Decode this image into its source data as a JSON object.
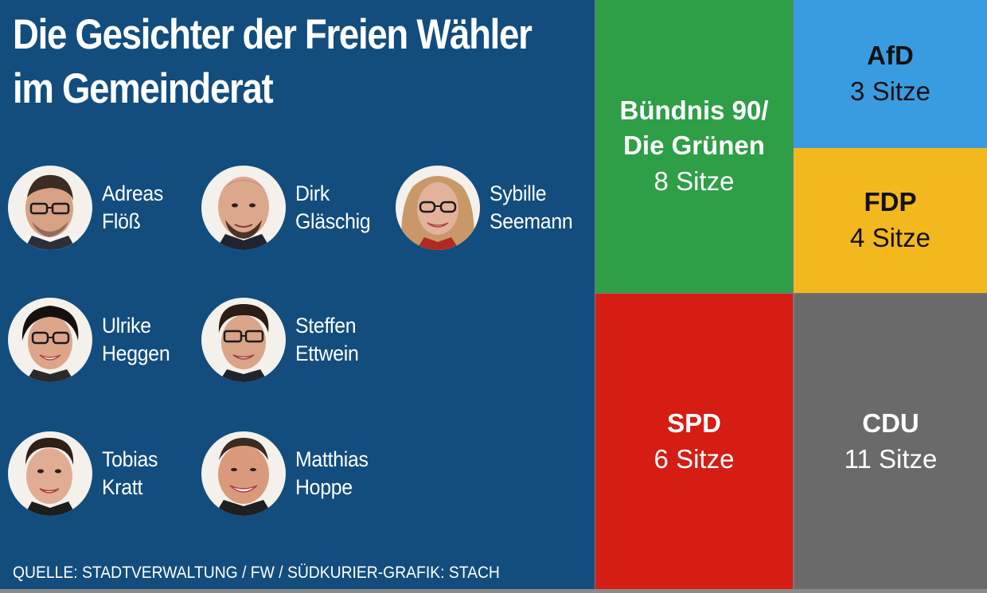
{
  "title_line1": "Die Gesichter der Freien Wähler",
  "title_line2": "im Gemeinderat",
  "people": [
    {
      "first": "Adreas",
      "last": "Flöß"
    },
    {
      "first": "Dirk",
      "last": "Gläschig"
    },
    {
      "first": "Sybille",
      "last": "Seemann"
    },
    {
      "first": "Ulrike",
      "last": "Heggen"
    },
    {
      "first": "Steffen",
      "last": "Ettwein"
    },
    {
      "first": "Tobias",
      "last": "Kratt"
    },
    {
      "first": "Matthias",
      "last": "Hoppe"
    }
  ],
  "source": "QUELLE: STADTVERWALTUNG / FW / SÜDKURIER-GRAFIK: STACH",
  "parties": {
    "gruene": {
      "line1": "Bündnis 90/",
      "line2": "Die Grünen",
      "seats": "8 Sitze",
      "color": "#2e9e47"
    },
    "afd": {
      "name": "AfD",
      "seats": "3 Sitze",
      "color": "#3a9ce0"
    },
    "fdp": {
      "name": "FDP",
      "seats": "4 Sitze",
      "color": "#f3b81d"
    },
    "spd": {
      "name": "SPD",
      "seats": "6 Sitze",
      "color": "#d51d13"
    },
    "cdu": {
      "name": "CDU",
      "seats": "11 Sitze",
      "color": "#6a6a6a"
    }
  },
  "colors": {
    "panel": "#124d7e"
  }
}
